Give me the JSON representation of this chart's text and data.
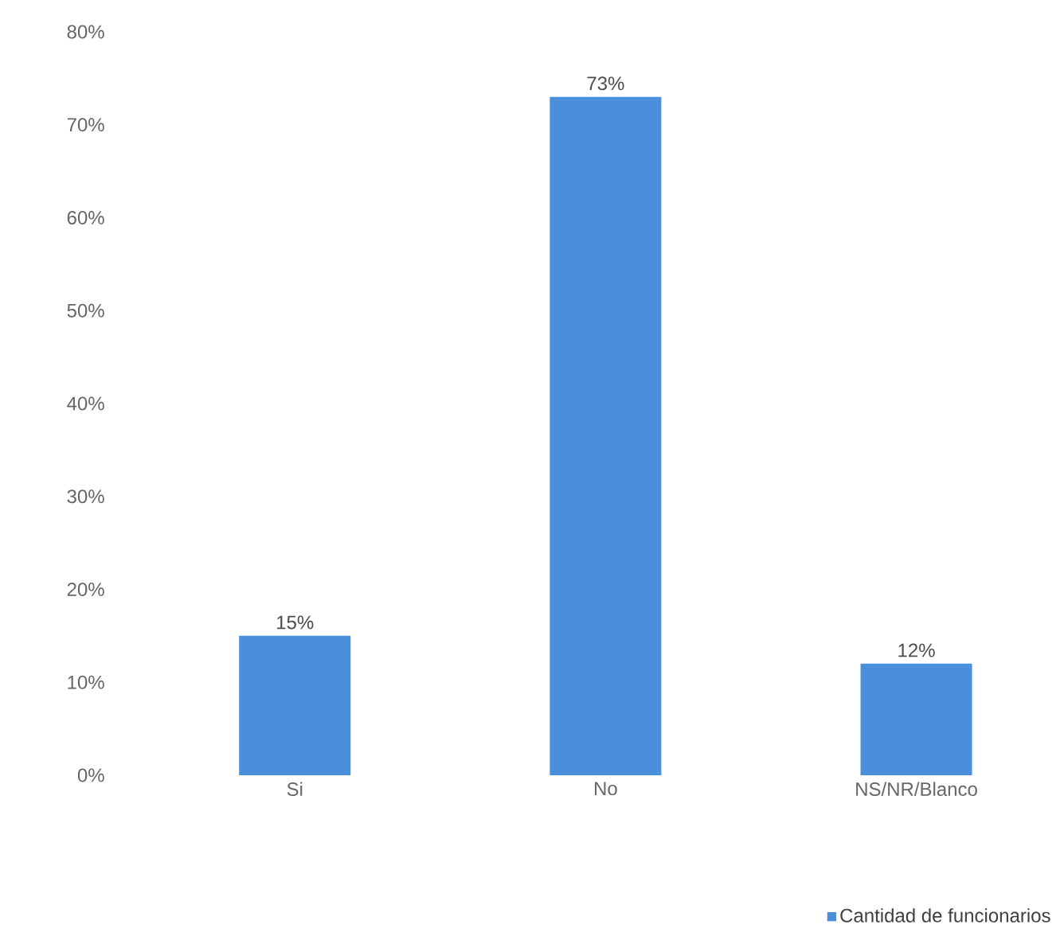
{
  "chart_data": {
    "type": "bar",
    "categories": [
      "Si",
      "No",
      "NS/NR/Blanco"
    ],
    "series": [
      {
        "name": "Cantidad de funcionarios",
        "color": "#4a8fdb",
        "values": [
          15,
          73,
          12
        ],
        "value_labels": [
          "15%",
          "73%",
          "12%"
        ]
      }
    ],
    "ylim": [
      0,
      80
    ],
    "yticks": [
      {
        "value": 0,
        "label": "0%"
      },
      {
        "value": 10,
        "label": "10%"
      },
      {
        "value": 20,
        "label": "20%"
      },
      {
        "value": 30,
        "label": "30%"
      },
      {
        "value": 40,
        "label": "40%"
      },
      {
        "value": 50,
        "label": "50%"
      },
      {
        "value": 60,
        "label": "60%"
      },
      {
        "value": 70,
        "label": "70%"
      },
      {
        "value": 80,
        "label": "80%"
      }
    ],
    "legend": "bottom right",
    "grid": false
  }
}
